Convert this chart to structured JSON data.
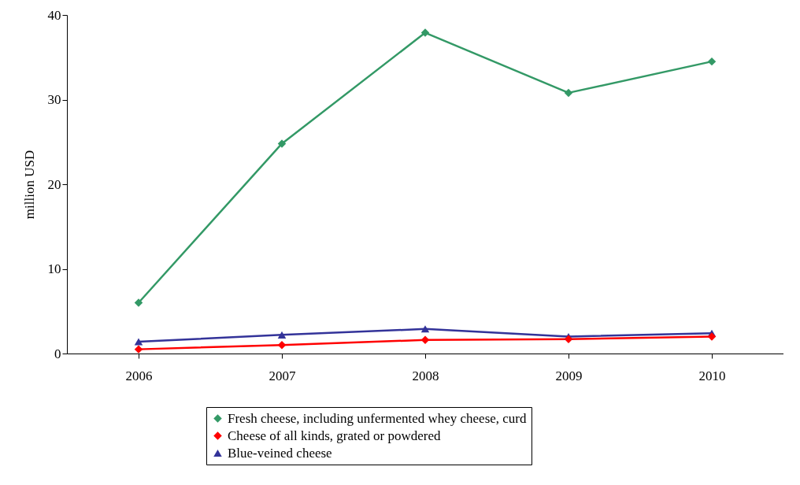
{
  "chart_data": {
    "type": "line",
    "ylabel": "million USD",
    "categories": [
      "2006",
      "2007",
      "2008",
      "2009",
      "2010"
    ],
    "ylim": [
      0,
      40
    ],
    "yticks": [
      0,
      10,
      20,
      30,
      40
    ],
    "grid": false,
    "legend": "bottom",
    "line_style": "solid",
    "series": [
      {
        "name": "Fresh cheese, including unfermented whey cheese, curd",
        "color": "#339966",
        "marker": "diamond",
        "values": [
          6.0,
          24.8,
          37.9,
          30.8,
          34.5
        ]
      },
      {
        "name": "Cheese of all kinds, grated or powdered",
        "color": "#ff0000",
        "marker": "diamond",
        "values": [
          0.5,
          1.0,
          1.6,
          1.7,
          2.0
        ]
      },
      {
        "name": "Blue-veined cheese",
        "color": "#333399",
        "marker": "triangle",
        "values": [
          1.4,
          2.2,
          2.9,
          2.0,
          2.4
        ]
      }
    ]
  }
}
